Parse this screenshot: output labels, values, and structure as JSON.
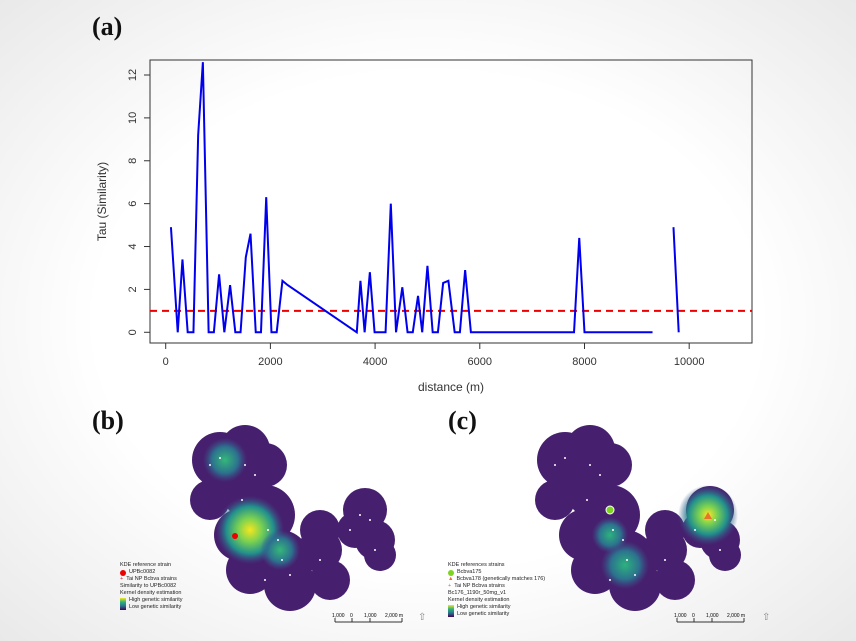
{
  "labels": {
    "a": "(a)",
    "b": "(b)",
    "c": "(c)"
  },
  "chart_data": {
    "type": "line",
    "xlabel": "distance (m)",
    "ylabel": "Tau (Similarity)",
    "xlim": [
      -300,
      11200
    ],
    "ylim": [
      -0.5,
      12.7
    ],
    "xticks": [
      0,
      2000,
      4000,
      6000,
      8000,
      10000
    ],
    "yticks": [
      0,
      2,
      4,
      6,
      8,
      10,
      12
    ],
    "line_color": "#0000ee",
    "threshold": {
      "y": 1,
      "color": "#ee0000",
      "style": "dashed"
    },
    "series": [
      {
        "x": [
          100,
          230,
          320,
          420,
          530,
          620,
          710,
          820,
          920,
          1020,
          1120,
          1230,
          1330,
          1430,
          1530,
          1620,
          1720,
          1820,
          1920,
          2020,
          2120,
          2230,
          2330,
          3650,
          3720,
          3800,
          3900,
          3990,
          4200,
          4300,
          4400,
          4520,
          4620,
          4720,
          4820,
          4900,
          5000,
          5100,
          5200,
          5300,
          5400,
          5520,
          5620,
          5720,
          5830,
          5930,
          6030,
          7800,
          7900,
          8000,
          9300
        ],
        "y": [
          4.9,
          0,
          3.4,
          0,
          0,
          9.2,
          12.6,
          0,
          0,
          2.7,
          0,
          2.2,
          0,
          0,
          3.5,
          4.6,
          0,
          0,
          6.3,
          0,
          0,
          2.4,
          2.2,
          0,
          2.4,
          0,
          2.8,
          0,
          0,
          6.0,
          0,
          2.1,
          0,
          0,
          1.7,
          0,
          3.1,
          0,
          0,
          2.3,
          2.4,
          0,
          0,
          2.9,
          0,
          0,
          0,
          0,
          4.4,
          0,
          0
        ]
      },
      {
        "x": [
          9700,
          9800
        ],
        "y": [
          4.9,
          0
        ]
      }
    ]
  },
  "map_b": {
    "legend": {
      "title": "KDE reference strain",
      "ref": "UPBc0082",
      "points": "Tai NP Bcbva strains",
      "sim_title": "Similarity to UPBc0082",
      "kde": "Kernel density estimation",
      "high": "High genetic similarity",
      "low": "Low genetic similarity"
    },
    "scale": {
      "ticks": [
        "1,000",
        "0",
        "1,000",
        "2,000 m"
      ]
    }
  },
  "map_c": {
    "legend": {
      "title": "KDE references strains",
      "ref1": "Bcbva175",
      "ref2": "Bcbva178 (genetically matches 176)",
      "points": "Tai NP Bcbva strains",
      "layer": "Bc176_1190r_50mg_v1",
      "kde": "Kernel density estimation",
      "high": "High genetic similarity",
      "low": "Low genetic similarity"
    },
    "scale": {
      "ticks": [
        "1,000",
        "0",
        "1,000",
        "2,000 m"
      ]
    }
  }
}
